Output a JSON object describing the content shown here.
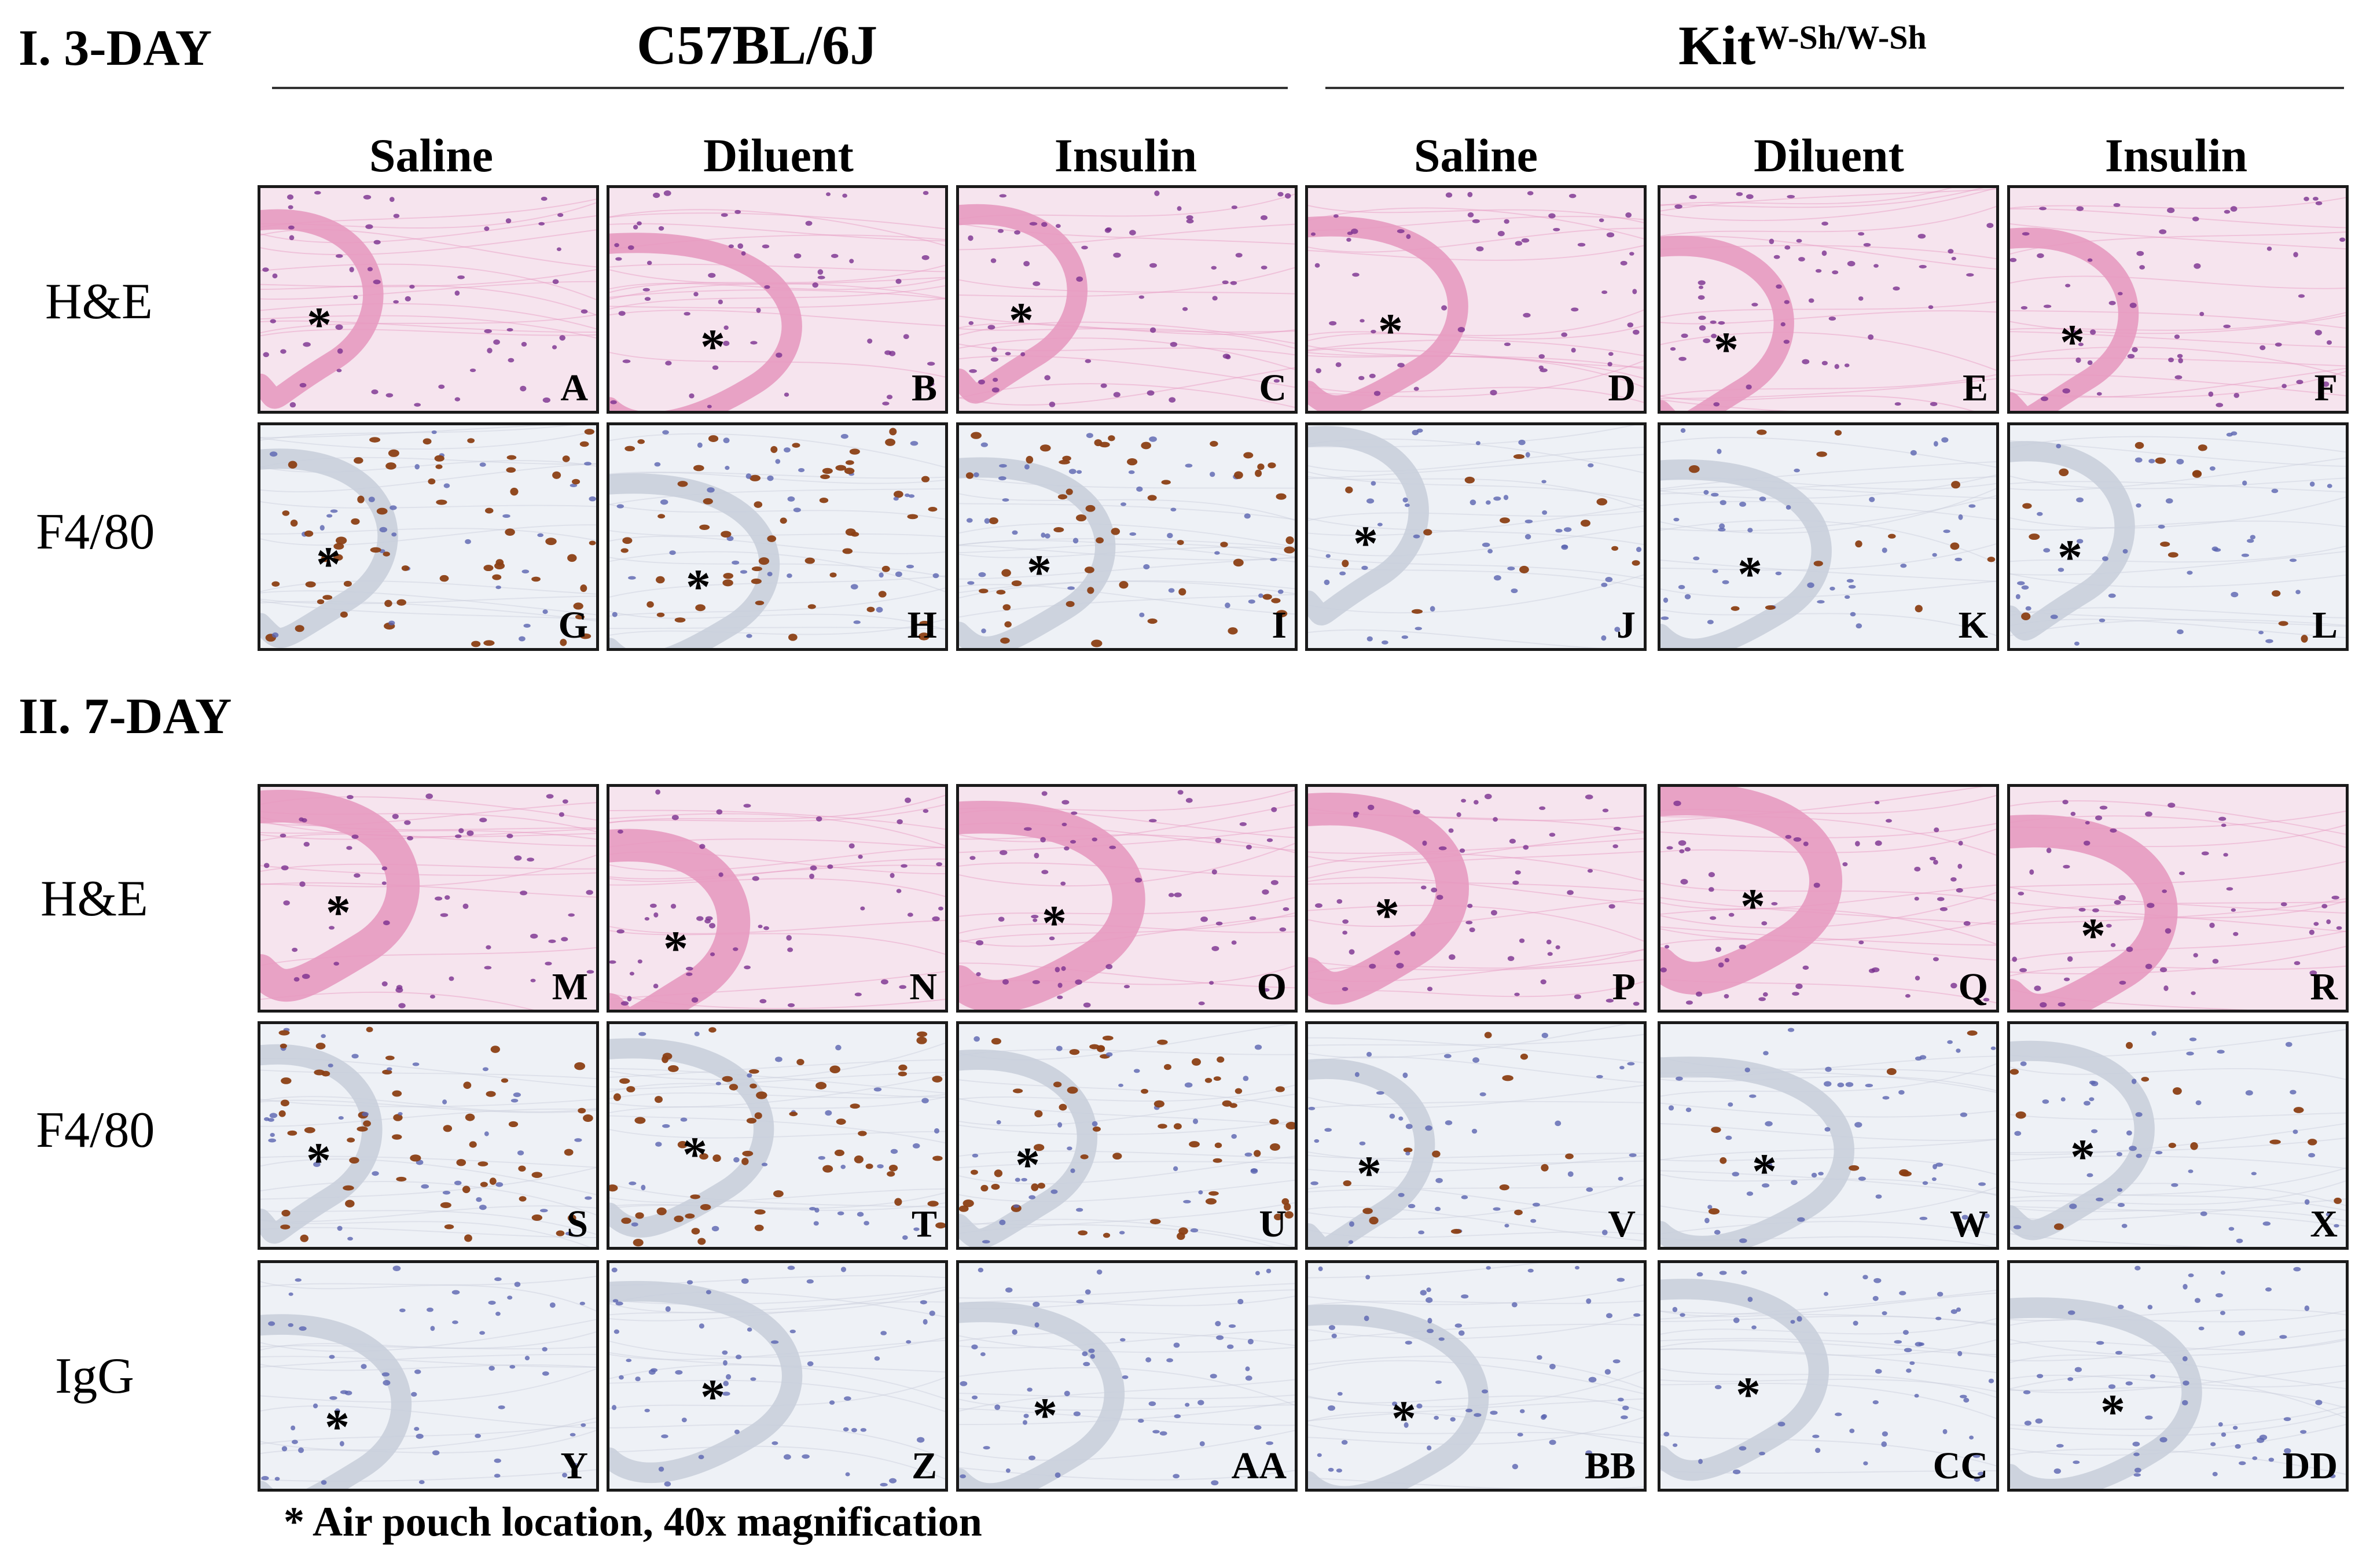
{
  "figure": {
    "section_1": {
      "title": "I. 3-DAY"
    },
    "section_2": {
      "title": "II. 7-DAY"
    },
    "groups": {
      "wild_type": {
        "label": "C57BL/6J"
      },
      "mutant": {
        "label": "Kit",
        "superscript": "W-Sh/W-Sh"
      }
    },
    "columns": [
      "Saline",
      "Diluent",
      "Insulin",
      "Saline",
      "Diluent",
      "Insulin"
    ],
    "row_labels": {
      "day3_he": "H&E",
      "day3_f480": "F4/80",
      "day7_he": "H&E",
      "day7_f480": "F4/80",
      "day7_igg": "IgG"
    },
    "panel_letters": {
      "day3_he": [
        "A",
        "B",
        "C",
        "D",
        "E",
        "F"
      ],
      "day3_f480": [
        "G",
        "H",
        "I",
        "J",
        "K",
        "L"
      ],
      "day7_he": [
        "M",
        "N",
        "O",
        "P",
        "Q",
        "R"
      ],
      "day7_f480": [
        "S",
        "T",
        "U",
        "V",
        "W",
        "X"
      ],
      "day7_igg": [
        "Y",
        "Z",
        "AA",
        "BB",
        "CC",
        "DD"
      ]
    },
    "asterisk": "*",
    "footnote": "* Air pouch location, 40x magnification"
  },
  "colors": {
    "he_background": "#f6e4ee",
    "he_tissue": "#e79ac0",
    "he_nuclei": "#7a2f8f",
    "ihc_background": "#eef1f6",
    "ihc_tissue": "#c9cfdc",
    "ihc_positive": "#8b3f14",
    "ihc_nuclei": "#5a64b0"
  }
}
